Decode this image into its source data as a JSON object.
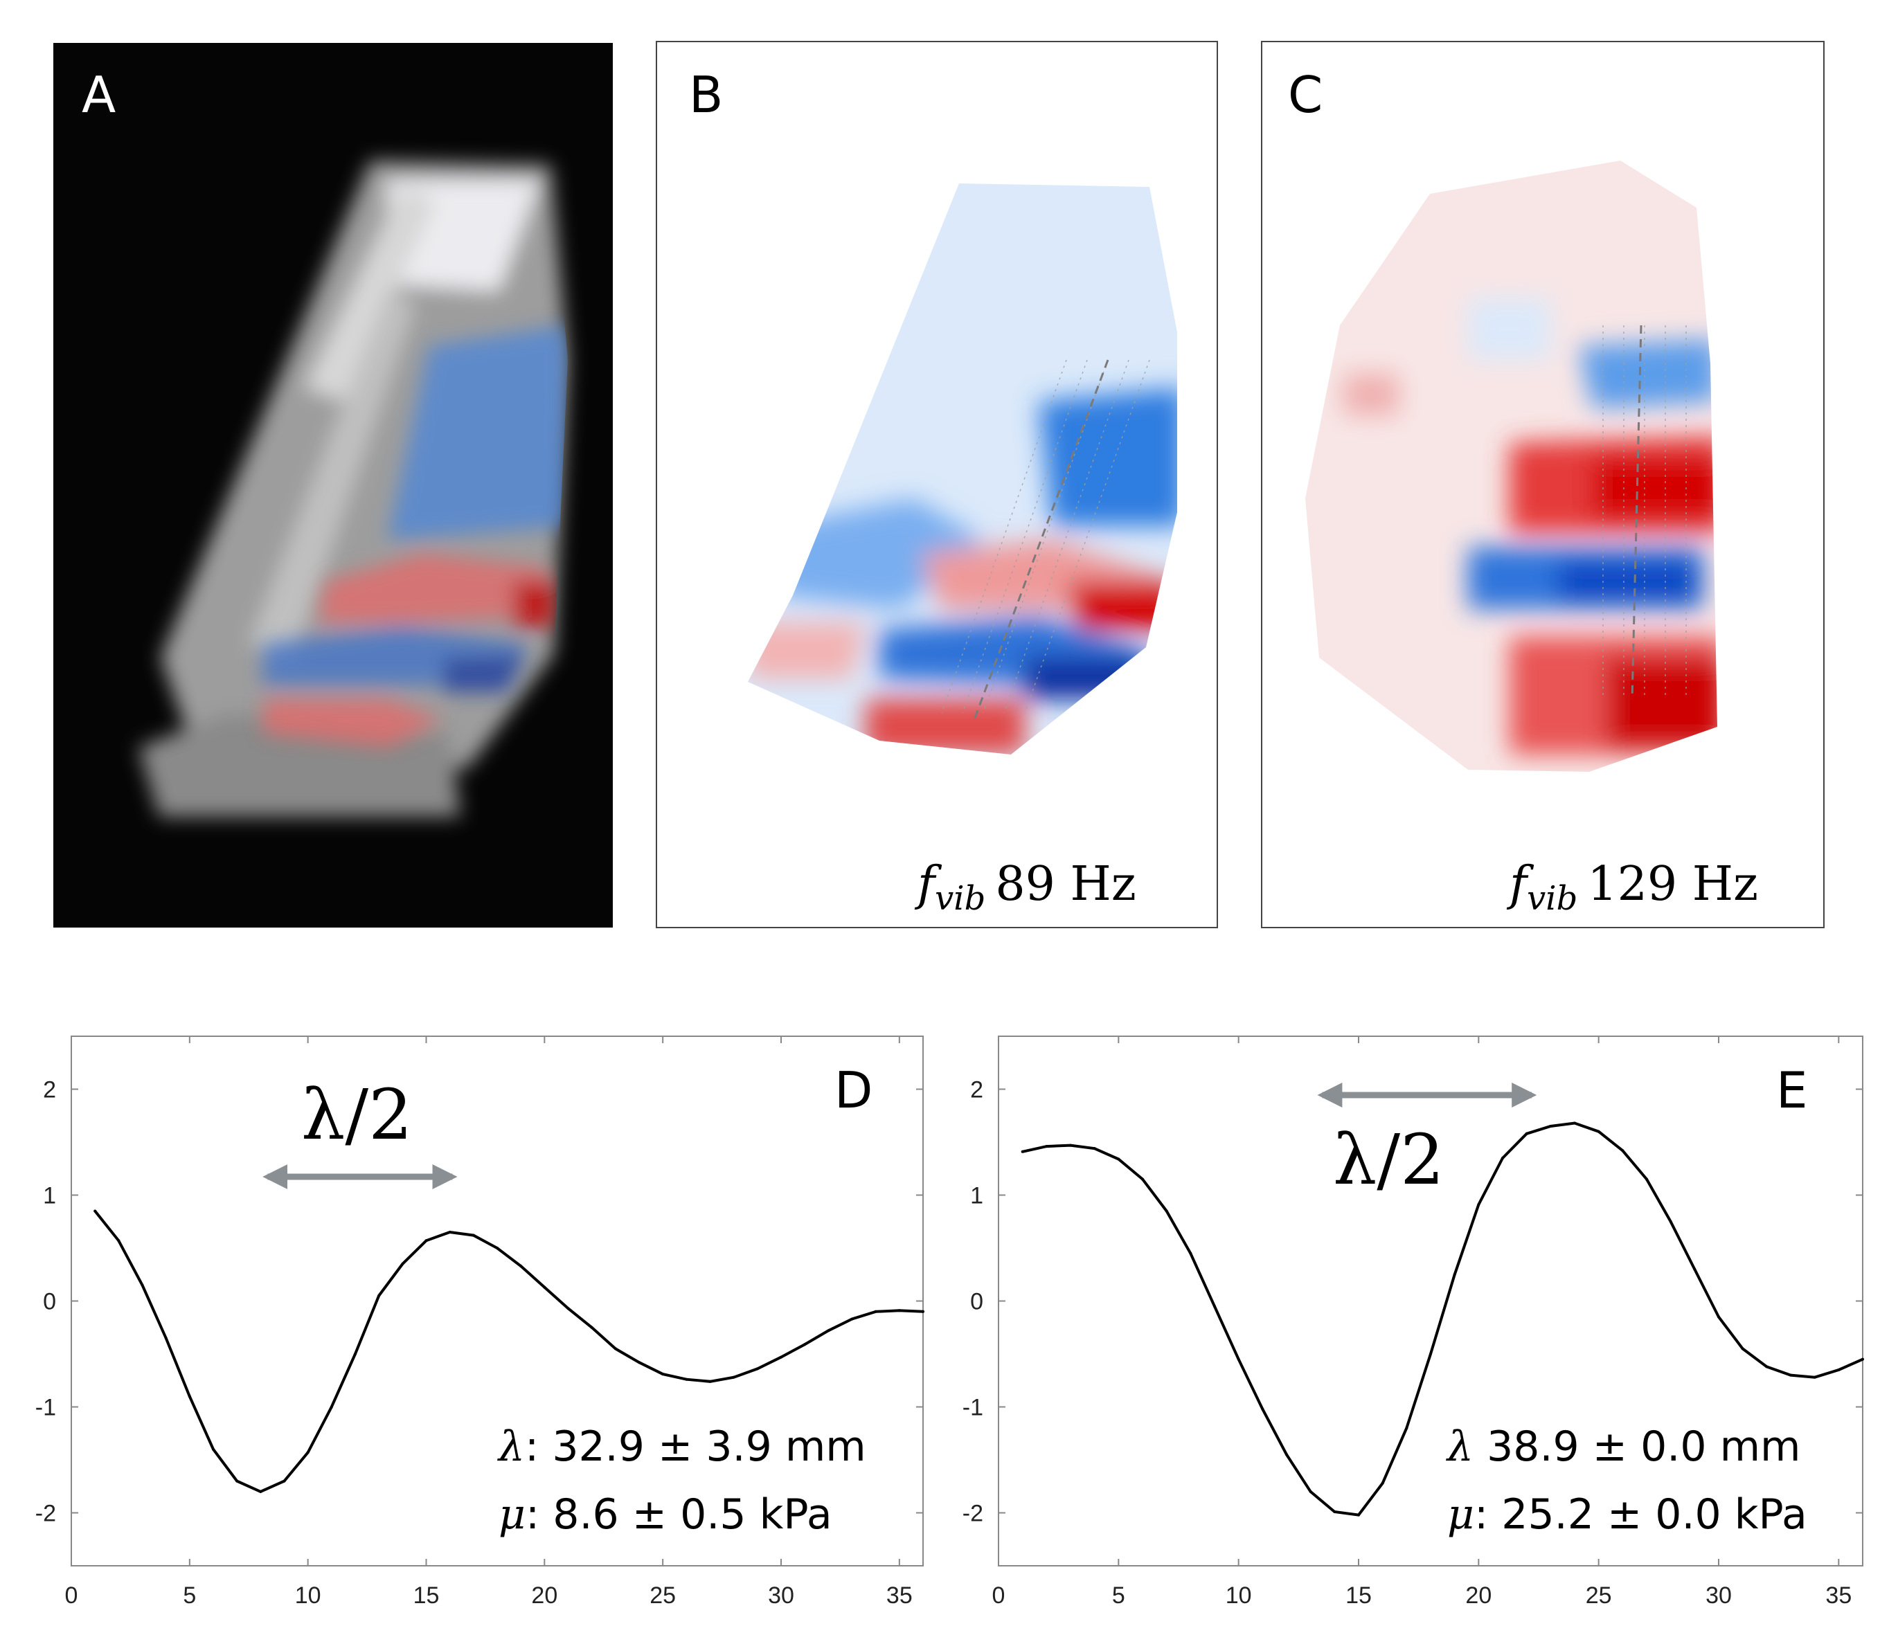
{
  "panels": {
    "a": {
      "letter": "A"
    },
    "b": {
      "letter": "B",
      "freq_symbol": "f",
      "freq_subscript": "vib",
      "freq_value": "89 Hz"
    },
    "c": {
      "letter": "C",
      "freq_symbol": "f",
      "freq_subscript": "vib",
      "freq_value": "129 Hz"
    }
  },
  "colors": {
    "positive": "#cc0000",
    "negative": "#003fa8",
    "neutral": "#ffffff",
    "magnitude_gray": "#b5b5b5",
    "arrow": "#8a8f94",
    "curve": "#000000"
  },
  "chart_data": [
    {
      "type": "line",
      "panel_letter": "D",
      "xlim": [
        0,
        36
      ],
      "ylim": [
        -2.5,
        2.5
      ],
      "x_ticks": [
        "0",
        "5",
        "10",
        "15",
        "20",
        "25",
        "30",
        "35"
      ],
      "y_ticks": [
        "2",
        "1",
        "0",
        "-1",
        "-2"
      ],
      "grid": false,
      "x": [
        1,
        2,
        3,
        4,
        5,
        6,
        7,
        8,
        9,
        10,
        11,
        12,
        13,
        14,
        15,
        16,
        17,
        18,
        19,
        20,
        21,
        22,
        23,
        24,
        25,
        26,
        27,
        28,
        29,
        30,
        31,
        32,
        33,
        34,
        35,
        36
      ],
      "series": [
        {
          "values": [
            0.85,
            0.57,
            0.15,
            -0.35,
            -0.9,
            -1.4,
            -1.7,
            -1.8,
            -1.7,
            -1.43,
            -1.0,
            -0.5,
            0.05,
            0.35,
            0.57,
            0.65,
            0.62,
            0.5,
            0.33,
            0.13,
            -0.07,
            -0.25,
            -0.45,
            -0.58,
            -0.69,
            -0.74,
            -0.76,
            -0.72,
            -0.64,
            -0.53,
            -0.41,
            -0.28,
            -0.17,
            -0.1,
            -0.09,
            -0.1
          ]
        }
      ],
      "annotation_lambda": "λ/2",
      "lambda_arrow_x": [
        8,
        16.4
      ],
      "stat_lines": [
        {
          "symbol": "λ",
          "text": ": 32.9 ± 3.9 mm"
        },
        {
          "symbol": "μ",
          "text": ": 8.6 ± 0.5 kPa"
        }
      ]
    },
    {
      "type": "line",
      "panel_letter": "E",
      "xlim": [
        0,
        36
      ],
      "ylim": [
        -2.5,
        2.5
      ],
      "x_ticks": [
        "0",
        "5",
        "10",
        "15",
        "20",
        "25",
        "30",
        "35"
      ],
      "y_ticks": [
        "2",
        "1",
        "0",
        "-1",
        "-2"
      ],
      "grid": false,
      "x": [
        1,
        2,
        3,
        4,
        5,
        6,
        7,
        8,
        9,
        10,
        11,
        12,
        13,
        14,
        15,
        16,
        17,
        18,
        19,
        20,
        21,
        22,
        23,
        24,
        25,
        26,
        27,
        28,
        29,
        30,
        31,
        32,
        33,
        34,
        35,
        36
      ],
      "series": [
        {
          "values": [
            1.41,
            1.46,
            1.47,
            1.44,
            1.34,
            1.15,
            0.85,
            0.45,
            -0.05,
            -0.55,
            -1.02,
            -1.45,
            -1.8,
            -1.99,
            -2.02,
            -1.72,
            -1.2,
            -0.5,
            0.25,
            0.91,
            1.35,
            1.58,
            1.65,
            1.68,
            1.6,
            1.42,
            1.15,
            0.75,
            0.3,
            -0.15,
            -0.45,
            -0.62,
            -0.7,
            -0.72,
            -0.65,
            -0.55
          ]
        }
      ],
      "annotation_lambda": "λ/2",
      "lambda_arrow_x": [
        13.2,
        22.5
      ],
      "stat_lines": [
        {
          "symbol": "λ",
          "text": " 38.9 ± 0.0 mm"
        },
        {
          "symbol": "μ",
          "text": ": 25.2 ± 0.0 kPa"
        }
      ]
    }
  ]
}
